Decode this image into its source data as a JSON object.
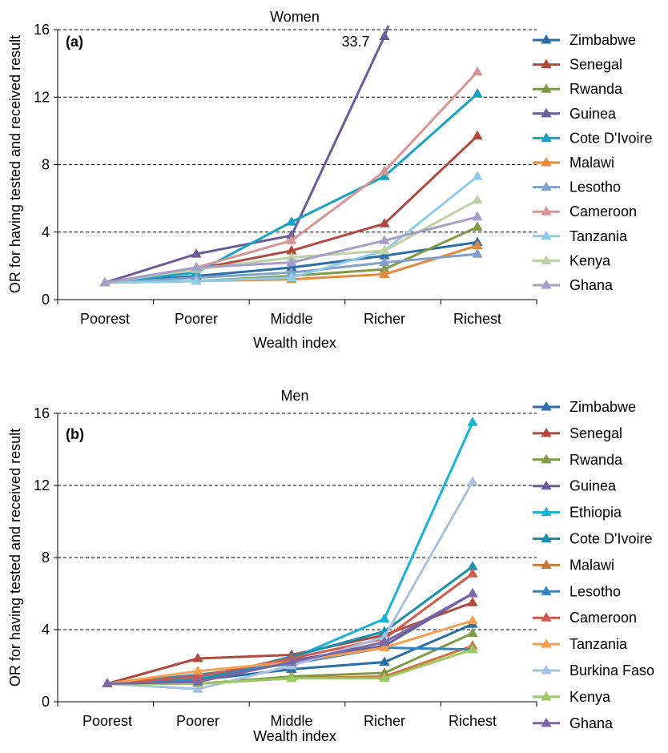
{
  "chart_data": [
    {
      "type": "line",
      "panel_label": "(a)",
      "title": "Women",
      "xlabel": "Wealth index",
      "ylabel": "OR for having tested and received result",
      "categories": [
        "Poorest",
        "Poorer",
        "Middle",
        "Richer",
        "Richest"
      ],
      "ylim": [
        0,
        16
      ],
      "yticks": [
        "0",
        "4",
        "8",
        "12",
        "16"
      ],
      "gridlines_dashed_at": [
        4,
        8,
        12,
        16
      ],
      "legend_position": "right",
      "annotations": [
        {
          "text": "33.7",
          "category": "Richer",
          "series": "Guinea"
        }
      ],
      "series": [
        {
          "name": "Zimbabwe",
          "color": "#2a6ea8",
          "values": [
            1,
            1.4,
            1.9,
            2.6,
            3.4
          ]
        },
        {
          "name": "Senegal",
          "color": "#b04a3f",
          "values": [
            1,
            1.8,
            2.9,
            4.5,
            9.7
          ]
        },
        {
          "name": "Rwanda",
          "color": "#7f9a44",
          "values": [
            1,
            1.1,
            1.4,
            1.8,
            4.3
          ]
        },
        {
          "name": "Guinea",
          "color": "#6b5b9a",
          "values": [
            1,
            2.7,
            3.8,
            15.6,
            null
          ]
        },
        {
          "name": "Cote D'Ivoire",
          "color": "#18a3c4",
          "values": [
            1,
            1.6,
            4.6,
            7.3,
            12.2
          ]
        },
        {
          "name": "Malawi",
          "color": "#e38a3c",
          "values": [
            1,
            1.1,
            1.2,
            1.5,
            3.2
          ]
        },
        {
          "name": "Lesotho",
          "color": "#7fa0ca",
          "values": [
            1,
            1.3,
            1.6,
            2.2,
            2.7
          ]
        },
        {
          "name": "Cameroon",
          "color": "#d79593",
          "values": [
            1,
            1.9,
            3.5,
            7.6,
            13.5
          ]
        },
        {
          "name": "Tanzania",
          "color": "#8ecbe6",
          "values": [
            1,
            1.1,
            1.3,
            2.9,
            7.3
          ]
        },
        {
          "name": "Kenya",
          "color": "#bcd2a4",
          "values": [
            1,
            1.8,
            2.5,
            2.9,
            5.9
          ]
        },
        {
          "name": "Ghana",
          "color": "#a79ec8",
          "values": [
            1,
            1.9,
            2.2,
            3.5,
            4.9
          ]
        }
      ]
    },
    {
      "type": "line",
      "panel_label": "(b)",
      "title": "Men",
      "xlabel": "Wealth index",
      "ylabel": "OR for having tested and received result",
      "categories": [
        "Poorest",
        "Poorer",
        "Middle",
        "Richer",
        "Richest"
      ],
      "ylim": [
        0,
        16
      ],
      "yticks": [
        "0",
        "4",
        "8",
        "12",
        "16"
      ],
      "gridlines_dashed_at": [
        4,
        8,
        12,
        16
      ],
      "legend_position": "right",
      "series": [
        {
          "name": "Zimbabwe",
          "color": "#2a6ea8",
          "values": [
            1,
            1.2,
            1.8,
            2.2,
            4.3
          ]
        },
        {
          "name": "Senegal",
          "color": "#b04a3f",
          "values": [
            1,
            2.4,
            2.6,
            3.7,
            5.5
          ]
        },
        {
          "name": "Rwanda",
          "color": "#7f9a44",
          "values": [
            1,
            1.0,
            1.4,
            1.6,
            3.8
          ]
        },
        {
          "name": "Guinea",
          "color": "#6b5b9a",
          "values": [
            1,
            1.1,
            2.3,
            3.1,
            6.0
          ]
        },
        {
          "name": "Ethiopia",
          "color": "#18b3d6",
          "values": [
            1,
            1.3,
            2.4,
            4.6,
            15.5
          ]
        },
        {
          "name": "Cote D'Ivoire",
          "color": "#1a8fae",
          "values": [
            1,
            1.2,
            2.5,
            3.9,
            7.5
          ]
        },
        {
          "name": "Malawi",
          "color": "#c9793c",
          "values": [
            1,
            1.0,
            1.3,
            1.4,
            3.1
          ]
        },
        {
          "name": "Lesotho",
          "color": "#2e86c8",
          "values": [
            1,
            1.5,
            2.1,
            3.0,
            2.9
          ]
        },
        {
          "name": "Cameroon",
          "color": "#d15a4d",
          "values": [
            1,
            1.4,
            2.4,
            3.5,
            7.1
          ]
        },
        {
          "name": "Tanzania",
          "color": "#f2a050",
          "values": [
            1,
            1.7,
            2.2,
            3.0,
            4.5
          ]
        },
        {
          "name": "Burkina Faso",
          "color": "#a7c1e2",
          "values": [
            1,
            0.7,
            2.0,
            3.6,
            12.2
          ]
        },
        {
          "name": "Kenya",
          "color": "#9bc965",
          "values": [
            1,
            1.0,
            1.3,
            1.3,
            2.9
          ]
        },
        {
          "name": "Ghana",
          "color": "#7a67a8",
          "values": [
            1,
            1.1,
            2.2,
            3.3,
            6.0
          ]
        }
      ]
    }
  ]
}
